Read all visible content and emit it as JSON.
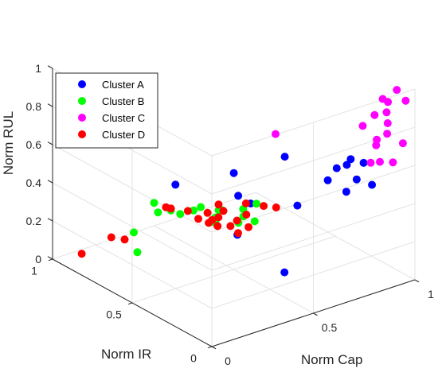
{
  "chart_data": {
    "type": "scatter",
    "title": "",
    "xlabel": "Norm Cap",
    "ylabel": "Norm IR",
    "zlabel": "Norm RUL",
    "xlim": [
      0,
      1
    ],
    "ylim": [
      0,
      1
    ],
    "zlim": [
      0,
      1
    ],
    "x_ticks": [
      "0",
      "0.5",
      "1"
    ],
    "y_ticks": [
      "0",
      "0.5",
      "1"
    ],
    "z_ticks": [
      "0",
      "0.2",
      "0.4",
      "0.6",
      "0.8",
      "1"
    ],
    "grid": true,
    "legend_position": "top-left",
    "series": [
      {
        "name": "Cluster A",
        "color": "#0000ff",
        "points": [
          [
            0.88,
            0.25,
            0.56
          ],
          [
            0.92,
            0.22,
            0.54
          ],
          [
            0.87,
            0.2,
            0.48
          ],
          [
            0.85,
            0.3,
            0.5
          ],
          [
            0.9,
            0.3,
            0.5
          ],
          [
            0.93,
            0.18,
            0.44
          ],
          [
            0.78,
            0.15,
            0.47
          ],
          [
            0.83,
            0.33,
            0.43
          ],
          [
            0.68,
            0.33,
            0.35
          ],
          [
            0.83,
            0.6,
            0.43
          ],
          [
            0.72,
            0.78,
            0.3
          ],
          [
            0.74,
            0.7,
            0.17
          ],
          [
            0.55,
            0.93,
            0.23
          ],
          [
            0.82,
            0.88,
            0.1
          ],
          [
            0.62,
            0.63,
            0.08
          ],
          [
            0.64,
            0.36,
            0.0
          ]
        ]
      },
      {
        "name": "Cluster B",
        "color": "#00ff00",
        "points": [
          [
            0.4,
            1.0,
            0.0
          ],
          [
            0.3,
            0.85,
            0.0
          ],
          [
            0.5,
            1.0,
            0.12
          ],
          [
            0.48,
            0.95,
            0.1
          ],
          [
            0.52,
            0.92,
            0.11
          ],
          [
            0.55,
            0.9,
            0.09
          ],
          [
            0.6,
            0.88,
            0.1
          ],
          [
            0.68,
            0.8,
            0.11
          ],
          [
            0.62,
            0.86,
            0.12
          ],
          [
            0.75,
            0.76,
            0.11
          ],
          [
            0.72,
            0.72,
            0.1
          ],
          [
            0.8,
            0.74,
            0.13
          ],
          [
            0.68,
            0.7,
            0.09
          ],
          [
            0.76,
            0.7,
            0.07
          ],
          [
            0.7,
            0.85,
            0.08
          ],
          [
            0.66,
            0.82,
            0.07
          ],
          [
            0.63,
            0.78,
            0.07
          ]
        ]
      },
      {
        "name": "Cluster C",
        "color": "#ff00ff",
        "points": [
          [
            0.95,
            0.05,
            0.99
          ],
          [
            0.97,
            0.02,
            0.94
          ],
          [
            0.92,
            0.1,
            0.93
          ],
          [
            0.93,
            0.08,
            0.92
          ],
          [
            0.9,
            0.05,
            0.89
          ],
          [
            0.88,
            0.1,
            0.86
          ],
          [
            0.96,
            0.12,
            0.78
          ],
          [
            0.91,
            0.06,
            0.77
          ],
          [
            0.9,
            0.2,
            0.75
          ],
          [
            0.98,
            0.05,
            0.7
          ],
          [
            0.93,
            0.15,
            0.69
          ],
          [
            0.95,
            0.18,
            0.64
          ],
          [
            0.89,
            0.08,
            0.62
          ],
          [
            0.97,
            0.1,
            0.58
          ],
          [
            0.9,
            0.15,
            0.58
          ],
          [
            0.8,
            0.62,
            0.55
          ]
        ]
      },
      {
        "name": "Cluster D",
        "color": "#ff0000",
        "points": [
          [
            0.12,
            0.97,
            0.0
          ],
          [
            0.25,
            0.95,
            0.05
          ],
          [
            0.3,
            0.93,
            0.03
          ],
          [
            0.48,
            0.9,
            0.15
          ],
          [
            0.52,
            0.92,
            0.12
          ],
          [
            0.58,
            0.89,
            0.1
          ],
          [
            0.6,
            0.85,
            0.07
          ],
          [
            0.62,
            0.81,
            0.06
          ],
          [
            0.64,
            0.78,
            0.05
          ],
          [
            0.63,
            0.83,
            0.1
          ],
          [
            0.7,
            0.82,
            0.09
          ],
          [
            0.68,
            0.75,
            0.05
          ],
          [
            0.72,
            0.76,
            0.06
          ],
          [
            0.75,
            0.74,
            0.09
          ],
          [
            0.78,
            0.78,
            0.12
          ],
          [
            0.66,
            0.8,
            0.08
          ],
          [
            0.82,
            0.72,
            0.12
          ],
          [
            0.85,
            0.68,
            0.12
          ],
          [
            0.7,
            0.85,
            0.11
          ],
          [
            0.73,
            0.7,
            0.05
          ],
          [
            0.6,
            0.6,
            0.11
          ],
          [
            0.55,
            0.7,
            0.15
          ]
        ]
      }
    ]
  }
}
